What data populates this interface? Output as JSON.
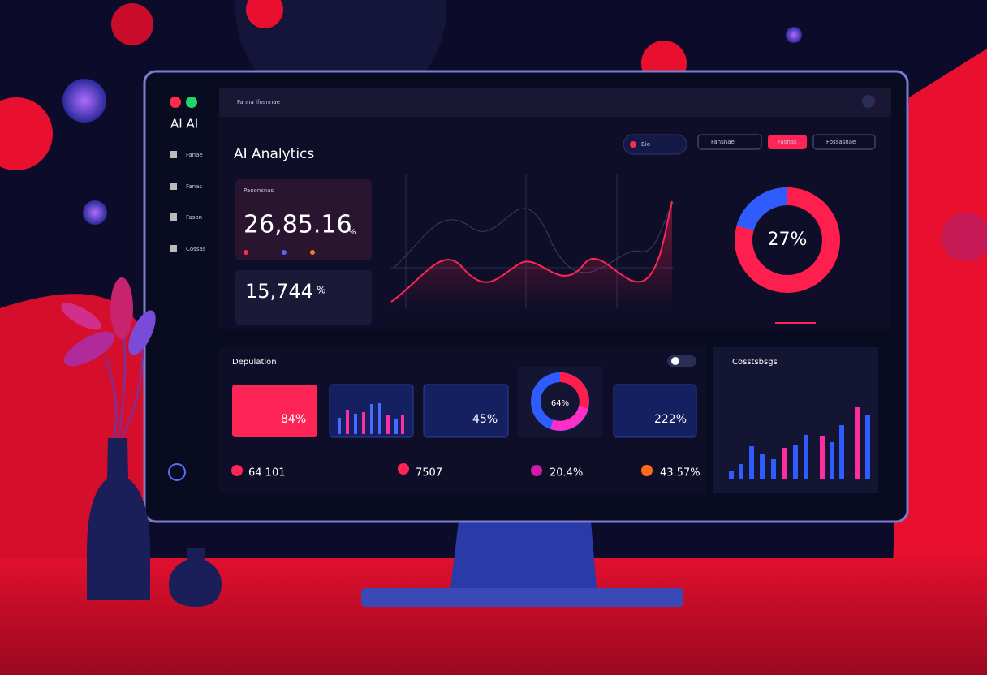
{
  "app": {
    "brand": "AI AI",
    "header": "Fanna ifosnnae",
    "title": "AI Analytics",
    "sidebar": [
      "Fanae",
      "Fanas",
      "Fason",
      "Cossas"
    ],
    "pills": [
      "Bio",
      "Fansnae",
      "Fasnas",
      "Fossasnae"
    ],
    "kpis": [
      {
        "label": "Paoonsnas",
        "value": "26,85.16",
        "unit": "%"
      },
      {
        "value": "15,744",
        "unit": "%"
      }
    ],
    "donut": "27%",
    "section": "Depulation",
    "cards": [
      "84%",
      "45%",
      "64%",
      "222%"
    ],
    "stats": [
      "64 101",
      "7507",
      "20.4%",
      "43.57%"
    ],
    "right_panel": "Cosstsbsgs"
  }
}
